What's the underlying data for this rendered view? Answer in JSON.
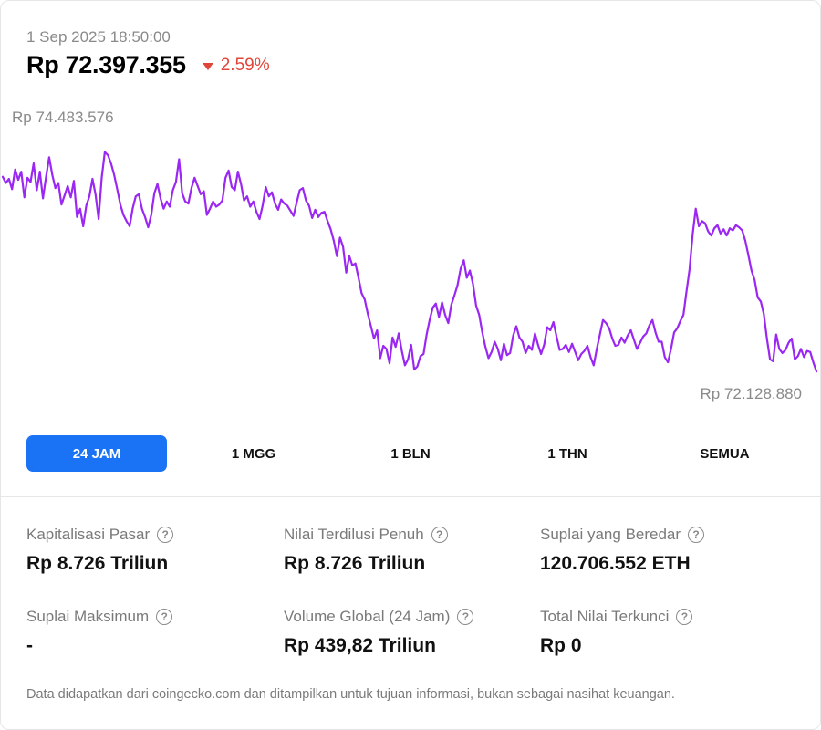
{
  "header": {
    "timestamp": "1 Sep 2025 18:50:00",
    "price": "Rp 72.397.355",
    "change": "2.59%",
    "change_direction_icon": "triangle-down-icon",
    "change_color": "#e0453a"
  },
  "chart": {
    "high_label": "Rp 74.483.576",
    "low_label": "Rp 72.128.880",
    "line_color": "#9b27f2"
  },
  "chart_data": {
    "type": "line",
    "title": "",
    "xlabel": "",
    "ylabel": "",
    "x_range": [
      "31 Aug 2025 18:50",
      "1 Sep 2025 18:50"
    ],
    "ylim": [
      72128880,
      74483576
    ],
    "series": [
      {
        "values": [
          74070000,
          74010000,
          74050000,
          73950000,
          74140000,
          74040000,
          74120000,
          73870000,
          74060000,
          74020000,
          74200000,
          73940000,
          74120000,
          73860000,
          74070000,
          74260000,
          74090000,
          73960000,
          74010000,
          73800000,
          73890000,
          73980000,
          73870000,
          74030000,
          73680000,
          73760000,
          73590000,
          73790000,
          73880000,
          74050000,
          73900000,
          73660000,
          74060000,
          74310000,
          74280000,
          74200000,
          74090000,
          73950000,
          73800000,
          73700000,
          73640000,
          73590000,
          73760000,
          73880000,
          73900000,
          73760000,
          73680000,
          73580000,
          73700000,
          73910000,
          74000000,
          73860000,
          73760000,
          73830000,
          73780000,
          73940000,
          74020000,
          74240000,
          73910000,
          73830000,
          73810000,
          73960000,
          74060000,
          73980000,
          73900000,
          73930000,
          73700000,
          73760000,
          73830000,
          73780000,
          73800000,
          73840000,
          74060000,
          74130000,
          73970000,
          73940000,
          74120000,
          74000000,
          73840000,
          73880000,
          73780000,
          73830000,
          73730000,
          73660000,
          73790000,
          73970000,
          73880000,
          73920000,
          73810000,
          73750000,
          73850000,
          73810000,
          73790000,
          73740000,
          73690000,
          73820000,
          73940000,
          73960000,
          73840000,
          73790000,
          73670000,
          73750000,
          73680000,
          73720000,
          73730000,
          73640000,
          73560000,
          73450000,
          73300000,
          73480000,
          73390000,
          73140000,
          73300000,
          73210000,
          73230000,
          73090000,
          72940000,
          72880000,
          72740000,
          72620000,
          72500000,
          72580000,
          72310000,
          72430000,
          72400000,
          72260000,
          72510000,
          72420000,
          72550000,
          72380000,
          72240000,
          72300000,
          72440000,
          72200000,
          72230000,
          72330000,
          72350000,
          72540000,
          72680000,
          72800000,
          72840000,
          72710000,
          72850000,
          72730000,
          72650000,
          72830000,
          72920000,
          73020000,
          73180000,
          73260000,
          73090000,
          73160000,
          73030000,
          72820000,
          72730000,
          72560000,
          72420000,
          72310000,
          72370000,
          72470000,
          72400000,
          72290000,
          72450000,
          72340000,
          72360000,
          72530000,
          72620000,
          72510000,
          72470000,
          72360000,
          72430000,
          72390000,
          72550000,
          72440000,
          72350000,
          72440000,
          72610000,
          72580000,
          72660000,
          72520000,
          72390000,
          72400000,
          72440000,
          72370000,
          72450000,
          72370000,
          72290000,
          72350000,
          72380000,
          72430000,
          72320000,
          72240000,
          72400000,
          72540000,
          72680000,
          72650000,
          72600000,
          72500000,
          72430000,
          72440000,
          72510000,
          72460000,
          72530000,
          72580000,
          72490000,
          72400000,
          72460000,
          72520000,
          72550000,
          72630000,
          72680000,
          72560000,
          72470000,
          72470000,
          72320000,
          72270000,
          72400000,
          72560000,
          72600000,
          72670000,
          72730000,
          72960000,
          73170000,
          73510000,
          73760000,
          73590000,
          73640000,
          73620000,
          73540000,
          73500000,
          73570000,
          73600000,
          73520000,
          73560000,
          73500000,
          73570000,
          73550000,
          73600000,
          73580000,
          73550000,
          73450000,
          73310000,
          73160000,
          73070000,
          72900000,
          72860000,
          72740000,
          72500000,
          72300000,
          72280000,
          72540000,
          72400000,
          72360000,
          72390000,
          72460000,
          72500000,
          72300000,
          72330000,
          72400000,
          72320000,
          72380000,
          72370000,
          72270000,
          72180000
        ]
      }
    ],
    "grid": false,
    "legend": "none"
  },
  "ranges": {
    "active_index": 0,
    "active_color": "#1a73f5",
    "items": [
      {
        "label": "24 JAM"
      },
      {
        "label": "1 MGG"
      },
      {
        "label": "1 BLN"
      },
      {
        "label": "1 THN"
      },
      {
        "label": "SEMUA"
      }
    ]
  },
  "stats": {
    "info_icon": "question-circle-icon",
    "items": [
      {
        "label": "Kapitalisasi Pasar",
        "value": "Rp 8.726 Triliun"
      },
      {
        "label": "Nilai Terdilusi Penuh",
        "value": "Rp 8.726 Triliun"
      },
      {
        "label": "Suplai yang Beredar",
        "value": "120.706.552 ETH"
      },
      {
        "label": "Suplai Maksimum",
        "value": "-"
      },
      {
        "label": "Volume Global (24 Jam)",
        "value": "Rp 439,82 Triliun"
      },
      {
        "label": "Total Nilai Terkunci",
        "value": "Rp 0"
      }
    ]
  },
  "footnote": "Data didapatkan dari coingecko.com dan ditampilkan untuk tujuan informasi, bukan sebagai nasihat keuangan."
}
